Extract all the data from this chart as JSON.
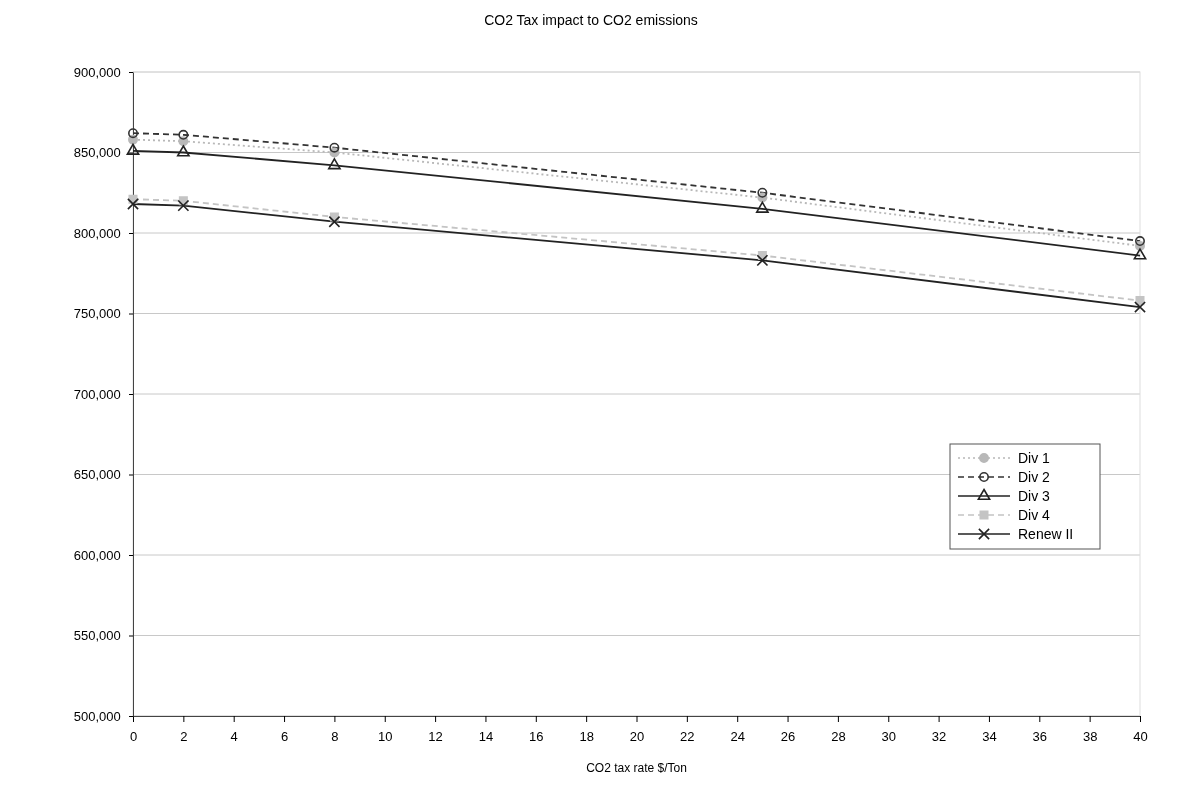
{
  "chart_data": {
    "type": "line",
    "title": "CO2 Tax impact to CO2 emissions",
    "xlabel": "CO2 tax rate $/Ton",
    "x": [
      0,
      2,
      8,
      25,
      40
    ],
    "xlim": [
      0,
      40
    ],
    "xticks": [
      0,
      2,
      4,
      6,
      8,
      10,
      12,
      14,
      16,
      18,
      20,
      22,
      24,
      26,
      28,
      30,
      32,
      34,
      36,
      38,
      40
    ],
    "ylim": [
      500000,
      900000
    ],
    "yticks": [
      {
        "value": 500000,
        "label": "500,000"
      },
      {
        "value": 550000,
        "label": "550,000"
      },
      {
        "value": 600000,
        "label": "600,000"
      },
      {
        "value": 650000,
        "label": "650,000"
      },
      {
        "value": 700000,
        "label": "700,000"
      },
      {
        "value": 750000,
        "label": "750,000"
      },
      {
        "value": 800000,
        "label": "800,000"
      },
      {
        "value": 850000,
        "label": "850,000"
      },
      {
        "value": 900000,
        "label": "900,000"
      }
    ],
    "grid": "y",
    "legend": "right",
    "series": [
      {
        "name": "Div 1",
        "color": "#b8b8b8",
        "marker": "circle",
        "line_style": "dotted",
        "values": [
          858000,
          857000,
          850000,
          822000,
          792000
        ]
      },
      {
        "name": "Div 2",
        "color": "#333333",
        "marker": "circle",
        "line_style": "dashed",
        "values": [
          862000,
          861000,
          853000,
          825000,
          795000
        ]
      },
      {
        "name": "Div 3",
        "color": "#222222",
        "marker": "triangle",
        "line_style": "solid",
        "values": [
          851000,
          850000,
          842000,
          815000,
          786000
        ]
      },
      {
        "name": "Div 4",
        "color": "#c4c4c4",
        "marker": "square",
        "line_style": "dashed",
        "values": [
          821000,
          820000,
          810000,
          786000,
          758000
        ]
      },
      {
        "name": "Renew II",
        "color": "#222222",
        "marker": "cross",
        "line_style": "solid",
        "values": [
          818000,
          817000,
          807000,
          783000,
          754000
        ]
      }
    ]
  }
}
